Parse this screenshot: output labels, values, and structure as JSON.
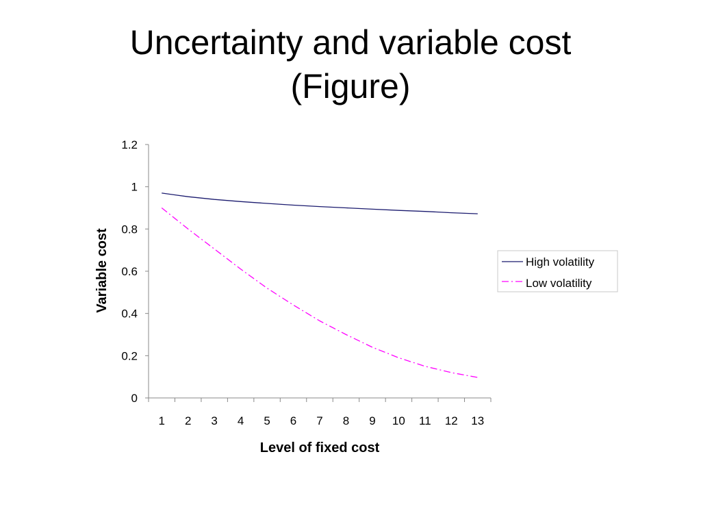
{
  "slide": {
    "title_line1": "Uncertainty and variable cost",
    "title_line2": "(Figure)"
  },
  "colors": {
    "high_volatility": "#1a1a6e",
    "low_volatility": "#ff00ff",
    "axis": "#888888"
  },
  "chart_data": {
    "type": "line",
    "title": "",
    "xlabel": "Level of fixed cost",
    "ylabel": "Variable cost",
    "categories": [
      "1",
      "2",
      "3",
      "4",
      "5",
      "6",
      "7",
      "8",
      "9",
      "10",
      "11",
      "12",
      "13"
    ],
    "ylim": [
      0,
      1.2
    ],
    "yticks": [
      "0",
      "0.2",
      "0.4",
      "0.6",
      "0.8",
      "1",
      "1.2"
    ],
    "grid": false,
    "legend_position": "right",
    "series": [
      {
        "name": "High volatility",
        "style": "solid",
        "values": [
          0.97,
          0.953,
          0.94,
          0.93,
          0.921,
          0.913,
          0.906,
          0.9,
          0.894,
          0.888,
          0.883,
          0.877,
          0.872
        ]
      },
      {
        "name": "Low volatility",
        "style": "dash-dot",
        "values": [
          0.9,
          0.8,
          0.705,
          0.61,
          0.52,
          0.44,
          0.365,
          0.3,
          0.24,
          0.19,
          0.15,
          0.12,
          0.097
        ]
      }
    ]
  }
}
